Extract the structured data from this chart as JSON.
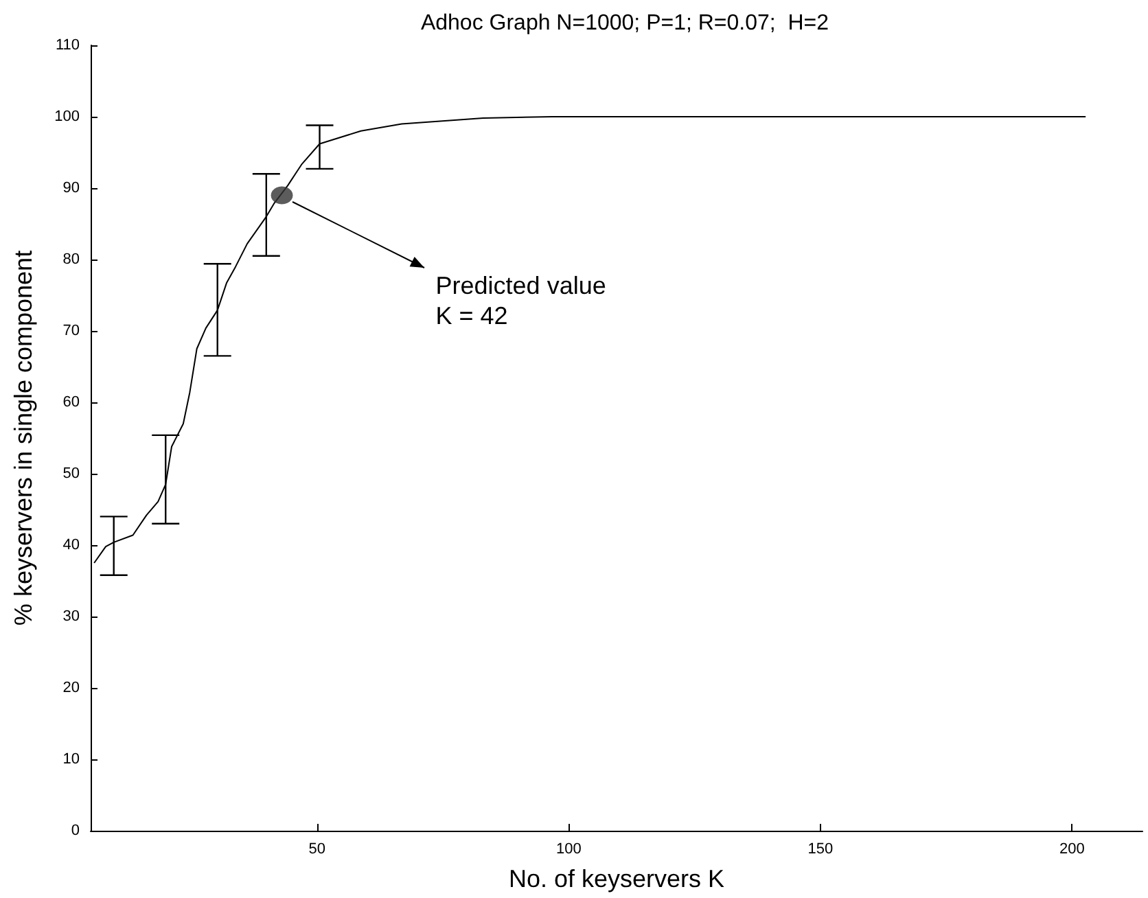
{
  "chart_data": {
    "type": "line",
    "title": "Adhoc Graph N=1000; P=1; R=0.07;  H=2",
    "xlabel": "No. of keyservers K",
    "ylabel": "% keyservers in single component",
    "xlim": [
      5,
      214
    ],
    "xticks": [
      50,
      100,
      150,
      200
    ],
    "ylim": [
      0,
      110
    ],
    "yticks": [
      0,
      10,
      20,
      30,
      40,
      50,
      60,
      70,
      80,
      90,
      100,
      110
    ],
    "grid": false,
    "series": [
      {
        "color": "#000000",
        "marker": "none",
        "line_style": "solid",
        "x": [
          5.7,
          8,
          9.6,
          13.4,
          16.1,
          18.4,
          19.9,
          21.1,
          23.4,
          24.7,
          26.1,
          27.9,
          30.2,
          32,
          33.8,
          36.1,
          39.2,
          39.9,
          41.5,
          44.2,
          46.9,
          50.5,
          58.7,
          66.8,
          83,
          96.7,
          202.7
        ],
        "values": [
          37.5,
          39.8,
          40.4,
          41.4,
          44.2,
          46.1,
          48.5,
          53.8,
          57,
          61.4,
          67.5,
          70.4,
          72.9,
          76.7,
          79,
          82.2,
          85.3,
          86,
          87.9,
          90.4,
          93.3,
          96.2,
          98,
          99,
          99.8,
          100,
          100
        ],
        "errors": [
          null,
          null,
          [
            35.8,
            44
          ],
          null,
          null,
          null,
          [
            43,
            55.4
          ],
          null,
          null,
          null,
          null,
          null,
          [
            66.5,
            79.4
          ],
          null,
          null,
          null,
          null,
          [
            80.5,
            92
          ],
          null,
          null,
          null,
          [
            92.7,
            98.8
          ],
          null,
          null,
          null,
          null,
          null
        ]
      },
      {
        "type": "scatter",
        "color": "#333333",
        "marker": "circle",
        "x": [
          43
        ],
        "values": [
          89
        ]
      }
    ],
    "annotations": [
      {
        "text": "Predicted value\nK = 42",
        "x": 43,
        "y": 89
      }
    ]
  }
}
